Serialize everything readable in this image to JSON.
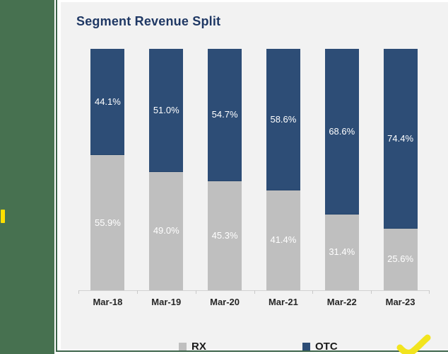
{
  "title": "Segment Revenue Split",
  "theme": {
    "title_color": "#1f3864",
    "panel_bg": "#f2f2f2",
    "sidebar_color": "#477150",
    "frame_line_color": "#3c6349",
    "marker_color": "#ffdf00",
    "axis_line_color": "#d2d2d2",
    "checkmark_color": "#f2e41e"
  },
  "chart_data": {
    "type": "bar",
    "variant": "100pct-stacked-column",
    "title": "Segment Revenue Split",
    "categories": [
      "Mar-18",
      "Mar-19",
      "Mar-20",
      "Mar-21",
      "Mar-22",
      "Mar-23"
    ],
    "series": [
      {
        "name": "RX",
        "color": "#bfbfbf",
        "label_color": "#ffffff",
        "values": [
          55.9,
          49.0,
          45.3,
          41.4,
          31.4,
          25.6
        ],
        "labels": [
          "55.9%",
          "49.0%",
          "45.3%",
          "41.4%",
          "31.4%",
          "25.6%"
        ]
      },
      {
        "name": "OTC",
        "color": "#2d4d76",
        "label_color": "#ffffff",
        "values": [
          44.1,
          51.0,
          54.7,
          58.6,
          68.6,
          74.4
        ],
        "labels": [
          "44.1%",
          "51.0%",
          "54.7%",
          "58.6%",
          "68.6%",
          "74.4%"
        ]
      }
    ],
    "ylim": [
      0,
      100
    ],
    "grid": false,
    "legend_position": "bottom"
  },
  "legend": {
    "items": [
      {
        "label": "RX",
        "color": "#bfbfbf"
      },
      {
        "label": "OTC",
        "color": "#2d4d76"
      }
    ]
  }
}
